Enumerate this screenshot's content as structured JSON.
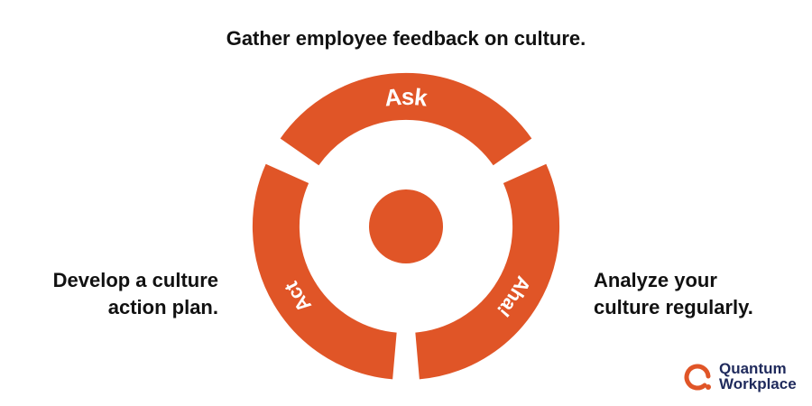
{
  "captions": {
    "top": "Gather employee feedback on culture.",
    "left": [
      "Develop a culture",
      "action plan."
    ],
    "right": [
      "Analyze your",
      "culture regularly."
    ]
  },
  "cycle": {
    "segments": [
      {
        "label": "Ask"
      },
      {
        "label": "Aha!"
      },
      {
        "label": "Act"
      }
    ]
  },
  "logo": {
    "line1": "Quantum",
    "line2": "Workplace"
  },
  "colors": {
    "accent": "#e05527",
    "text": "#111111",
    "logo_text": "#1f2a5c"
  }
}
